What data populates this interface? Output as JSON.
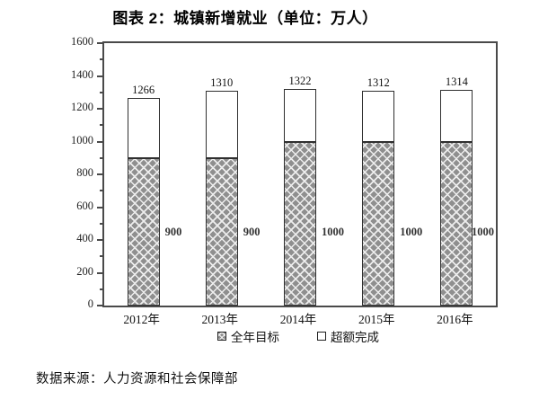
{
  "title": "图表 2：城镇新增就业（单位：万人）",
  "source_note": "数据来源：人力资源和社会保障部",
  "legend": {
    "items": [
      {
        "label": "全年目标",
        "swatch": "hatched"
      },
      {
        "label": "超额完成",
        "swatch": "white"
      }
    ]
  },
  "colors": {
    "bar_hatch_base": "#8f8f8f",
    "bar_hatch_line": "#ededed",
    "bar_border": "#2f2f2f",
    "frame": "#4a4a4a",
    "text": "#111111"
  },
  "chart_data": {
    "type": "bar",
    "stacked": true,
    "title": "图表 2：城镇新增就业（单位：万人）",
    "unit": "万人",
    "categories": [
      "2012年",
      "2013年",
      "2014年",
      "2015年",
      "2016年"
    ],
    "series": [
      {
        "name": "全年目标",
        "values": [
          900,
          900,
          1000,
          1000,
          1000
        ]
      },
      {
        "name": "超额完成",
        "values": [
          366,
          410,
          322,
          312,
          314
        ]
      }
    ],
    "totals": [
      1266,
      1310,
      1322,
      1312,
      1314
    ],
    "total_labels": [
      "1266",
      "1310",
      "1322",
      "1312",
      "1314"
    ],
    "target_labels": [
      "900",
      "900",
      "1000",
      "1000",
      "1000"
    ],
    "ylim": [
      0,
      1600
    ],
    "ytick_step": 200,
    "yminor_step": 100,
    "ytick_labels": [
      "0",
      "200",
      "400",
      "600",
      "800",
      "1000",
      "1200",
      "1400",
      "1600"
    ],
    "grid": false,
    "legend_position": "bottom"
  }
}
